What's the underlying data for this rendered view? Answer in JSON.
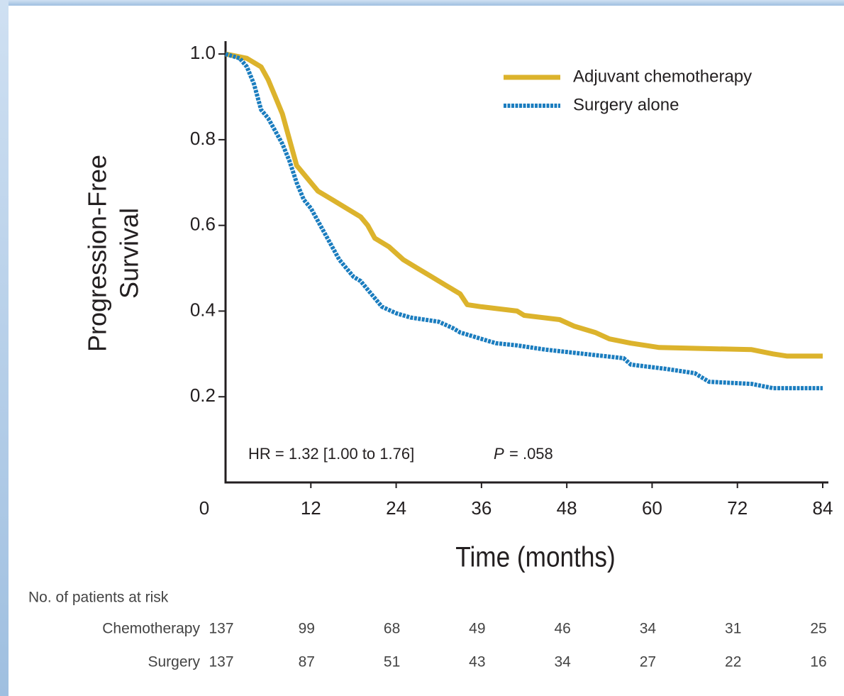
{
  "chart_data": {
    "type": "line",
    "x_label": "Time (months)",
    "y_label": [
      "Progression-Free",
      "Survival"
    ],
    "xlim": [
      0,
      84
    ],
    "xticks": [
      0,
      12,
      24,
      36,
      48,
      60,
      72,
      84
    ],
    "ylim": [
      0,
      1.03
    ],
    "yticks": [
      0.2,
      0.4,
      0.6,
      0.8,
      {
        "value": 1,
        "label": "1.0"
      }
    ],
    "legend": "top-right",
    "annotations": [
      "HR = 1.32 [1.00 to 1.76]",
      "P",
      "= .058"
    ],
    "series": [
      {
        "name": "Adjuvant chemotherapy",
        "color": "#dcb32c",
        "style": "solid",
        "x": [
          0,
          3,
          5,
          6,
          7,
          8,
          9,
          10,
          11,
          12,
          13,
          15,
          17,
          19,
          20,
          21,
          23,
          25,
          27,
          29,
          31,
          33,
          34,
          36,
          41,
          42,
          47,
          49,
          52,
          54,
          57,
          61,
          74,
          77,
          79,
          84
        ],
        "values": [
          1.0,
          0.99,
          0.97,
          0.94,
          0.9,
          0.86,
          0.8,
          0.74,
          0.72,
          0.7,
          0.68,
          0.66,
          0.64,
          0.62,
          0.6,
          0.57,
          0.55,
          0.52,
          0.5,
          0.48,
          0.46,
          0.44,
          0.415,
          0.41,
          0.4,
          0.39,
          0.38,
          0.365,
          0.35,
          0.335,
          0.325,
          0.315,
          0.31,
          0.3,
          0.295,
          0.295
        ]
      },
      {
        "name": "Surgery alone",
        "color": "#1b7dbf",
        "style": "dotted",
        "x": [
          0,
          2,
          3,
          4,
          5,
          6,
          7,
          8,
          9,
          10,
          11,
          12,
          13,
          14,
          15,
          16,
          17,
          18,
          19,
          20,
          21,
          22,
          24,
          26,
          30,
          32,
          33,
          36,
          38,
          41,
          45,
          56,
          57,
          62,
          66,
          68,
          74,
          77,
          84
        ],
        "values": [
          1.0,
          0.99,
          0.97,
          0.93,
          0.87,
          0.85,
          0.82,
          0.79,
          0.75,
          0.7,
          0.66,
          0.64,
          0.61,
          0.58,
          0.55,
          0.52,
          0.5,
          0.48,
          0.47,
          0.45,
          0.43,
          0.41,
          0.395,
          0.385,
          0.375,
          0.36,
          0.35,
          0.335,
          0.325,
          0.32,
          0.31,
          0.29,
          0.275,
          0.265,
          0.255,
          0.235,
          0.23,
          0.22,
          0.22
        ]
      }
    ]
  },
  "risk_table": {
    "title": "No. of patients at risk",
    "rows": [
      {
        "label": "Chemotherapy",
        "counts": [
          "137",
          "99",
          "68",
          "49",
          "46",
          "34",
          "31",
          "25"
        ]
      },
      {
        "label": "Surgery",
        "counts": [
          "137",
          "87",
          "51",
          "43",
          "34",
          "27",
          "22",
          "16"
        ]
      }
    ]
  }
}
